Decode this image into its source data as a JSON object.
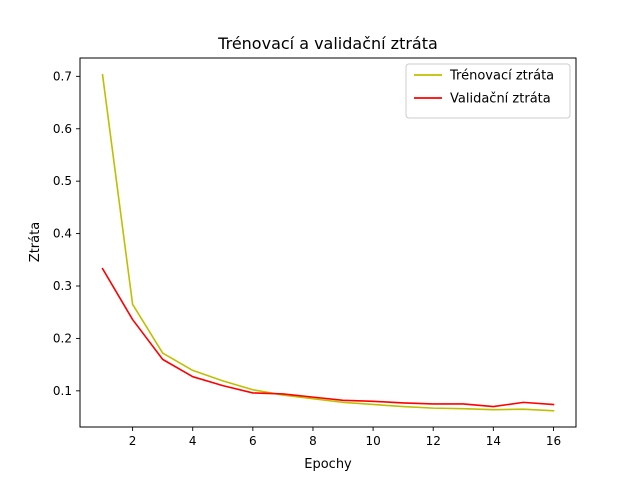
{
  "chart_data": {
    "type": "line",
    "title": "Trénovací a validační ztráta",
    "xlabel": "Epochy",
    "ylabel": "Ztráta",
    "x": [
      1,
      2,
      3,
      4,
      5,
      6,
      7,
      8,
      9,
      10,
      11,
      12,
      13,
      14,
      15,
      16
    ],
    "xlim": [
      0.25,
      16.75
    ],
    "ylim": [
      0.031,
      0.735
    ],
    "xticks": [
      2,
      4,
      6,
      8,
      10,
      12,
      14,
      16
    ],
    "yticks": [
      0.1,
      0.2,
      0.3,
      0.4,
      0.5,
      0.6,
      0.7
    ],
    "grid": false,
    "legend_position": "top-right",
    "series": [
      {
        "name": "Trénovací ztráta",
        "color": "#bfbf00",
        "values": [
          0.703,
          0.265,
          0.172,
          0.139,
          0.119,
          0.102,
          0.092,
          0.085,
          0.078,
          0.074,
          0.07,
          0.067,
          0.066,
          0.064,
          0.065,
          0.062
        ]
      },
      {
        "name": "Validační ztráta",
        "color": "#ff0000",
        "values": [
          0.333,
          0.236,
          0.16,
          0.127,
          0.11,
          0.096,
          0.094,
          0.088,
          0.082,
          0.08,
          0.077,
          0.075,
          0.075,
          0.07,
          0.078,
          0.074
        ]
      }
    ]
  }
}
